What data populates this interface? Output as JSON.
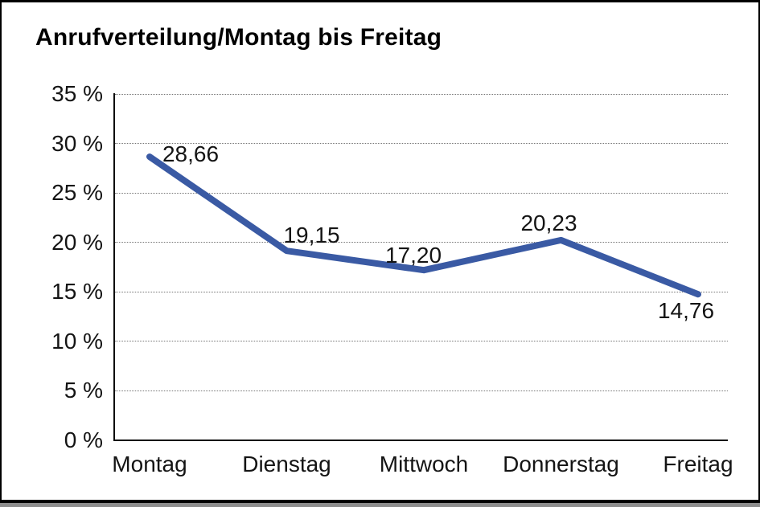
{
  "chart_data": {
    "type": "line",
    "title": "Anrufverteilung/Montag bis Freitag",
    "categories": [
      "Montag",
      "Dienstag",
      "Mittwoch",
      "Donnerstag",
      "Freitag"
    ],
    "series": [
      {
        "name": "Anrufverteilung",
        "values": [
          28.66,
          19.15,
          17.2,
          20.23,
          14.76
        ]
      }
    ],
    "value_labels": [
      "28,66",
      "19,15",
      "17,20",
      "20,23",
      "14,76"
    ],
    "xlabel": "",
    "ylabel": "",
    "ylim": [
      0,
      35
    ],
    "ytick_step": 5,
    "yticks": [
      {
        "v": 35,
        "label": "35 %"
      },
      {
        "v": 30,
        "label": "30 %"
      },
      {
        "v": 25,
        "label": "25 %"
      },
      {
        "v": 20,
        "label": "20 %"
      },
      {
        "v": 15,
        "label": "15 %"
      },
      {
        "v": 10,
        "label": "10 %"
      },
      {
        "v": 5,
        "label": "5 %"
      },
      {
        "v": 0,
        "label": "0 %"
      }
    ],
    "grid": "horizontal-dotted",
    "legend": "none",
    "line_color": "#3A5AA4",
    "axis_color": "#0d0d0d",
    "gridline_color": "#767676",
    "label_color": "#141414"
  }
}
